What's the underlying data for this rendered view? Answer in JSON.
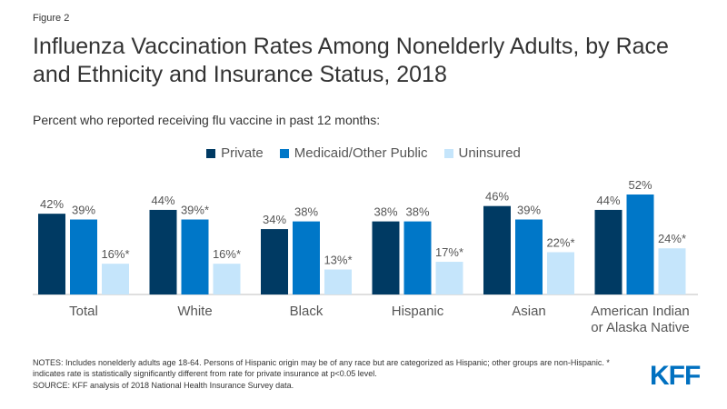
{
  "figure_label": "Figure 2",
  "chart_data": {
    "type": "bar",
    "title": "Influenza Vaccination Rates Among Nonelderly Adults, by Race and Ethnicity and Insurance Status, 2018",
    "subtitle": "Percent who reported receiving flu vaccine in past 12 months:",
    "xlabel": "",
    "ylabel": "",
    "ylim": [
      0,
      60
    ],
    "grid": false,
    "legend_position": "top-center",
    "categories": [
      [
        "Total"
      ],
      [
        "White"
      ],
      [
        "Black"
      ],
      [
        "Hispanic"
      ],
      [
        "Asian"
      ],
      [
        "American Indian",
        "or Alaska Native"
      ]
    ],
    "series": [
      {
        "name": "Private",
        "color": "#003a63",
        "values": [
          42,
          44,
          34,
          38,
          46,
          44
        ],
        "labels": [
          "42%",
          "44%",
          "34%",
          "38%",
          "46%",
          "44%"
        ]
      },
      {
        "name": "Medicaid/Other Public",
        "color": "#0077c8",
        "values": [
          39,
          39,
          38,
          38,
          39,
          52
        ],
        "labels": [
          "39%",
          "39%*",
          "38%",
          "38%",
          "39%",
          "52%"
        ]
      },
      {
        "name": "Uninsured",
        "color": "#c5e5fb",
        "values": [
          16,
          16,
          13,
          17,
          22,
          24
        ],
        "labels": [
          "16%*",
          "16%*",
          "13%*",
          "17%*",
          "22%*",
          "24%*"
        ]
      }
    ]
  },
  "notes": "NOTES: Includes nonelderly adults age 18-64. Persons of Hispanic origin may be of any race but are categorized as Hispanic; other groups are non-Hispanic. * indicates rate is statistically significantly different from rate for private insurance at p<0.05 level.",
  "source": "SOURCE: KFF analysis of 2018 National Health Insurance Survey data.",
  "logo_text": "KFF"
}
